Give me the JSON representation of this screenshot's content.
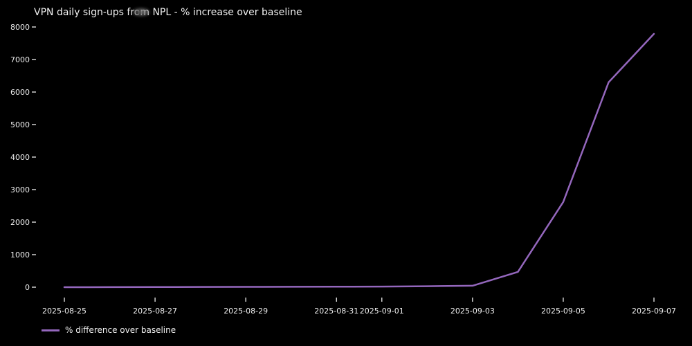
{
  "title": "VPN daily sign-ups from NPL - % increase over baseline",
  "legend": {
    "label": "% difference over baseline"
  },
  "colors": {
    "background": "#000000",
    "line": "#9467bd",
    "text": "#f0f0f0"
  },
  "chart_data": {
    "type": "line",
    "title": "VPN daily sign-ups from NPL - % increase over baseline",
    "xlabel": "",
    "ylabel": "",
    "grid": false,
    "legend_entries": [
      "% difference over baseline"
    ],
    "legend_position": "lower-left-below-axis",
    "x": [
      "2025-08-25",
      "2025-08-26",
      "2025-08-27",
      "2025-08-28",
      "2025-08-29",
      "2025-08-30",
      "2025-08-31",
      "2025-09-01",
      "2025-09-02",
      "2025-09-03",
      "2025-09-04",
      "2025-09-05",
      "2025-09-06",
      "2025-09-07"
    ],
    "series": [
      {
        "name": "% difference over baseline",
        "color": "#9467bd",
        "values": [
          0,
          3,
          5,
          8,
          10,
          12,
          15,
          20,
          30,
          45,
          470,
          2620,
          6300,
          7790
        ]
      }
    ],
    "x_ticks": [
      {
        "label": "2025-08-25",
        "day_index": 0
      },
      {
        "label": "2025-08-27",
        "day_index": 2
      },
      {
        "label": "2025-08-29",
        "day_index": 4
      },
      {
        "label": "2025-08-31",
        "day_index": 6
      },
      {
        "label": "2025-09-01",
        "day_index": 7
      },
      {
        "label": "2025-09-03",
        "day_index": 9
      },
      {
        "label": "2025-09-05",
        "day_index": 11
      },
      {
        "label": "2025-09-07",
        "day_index": 13
      }
    ],
    "y_ticks": [
      0,
      1000,
      2000,
      3000,
      4000,
      5000,
      6000,
      7000,
      8000
    ],
    "ylim": [
      -320,
      8170
    ],
    "xlim_days": [
      -0.66,
      13.66
    ]
  }
}
